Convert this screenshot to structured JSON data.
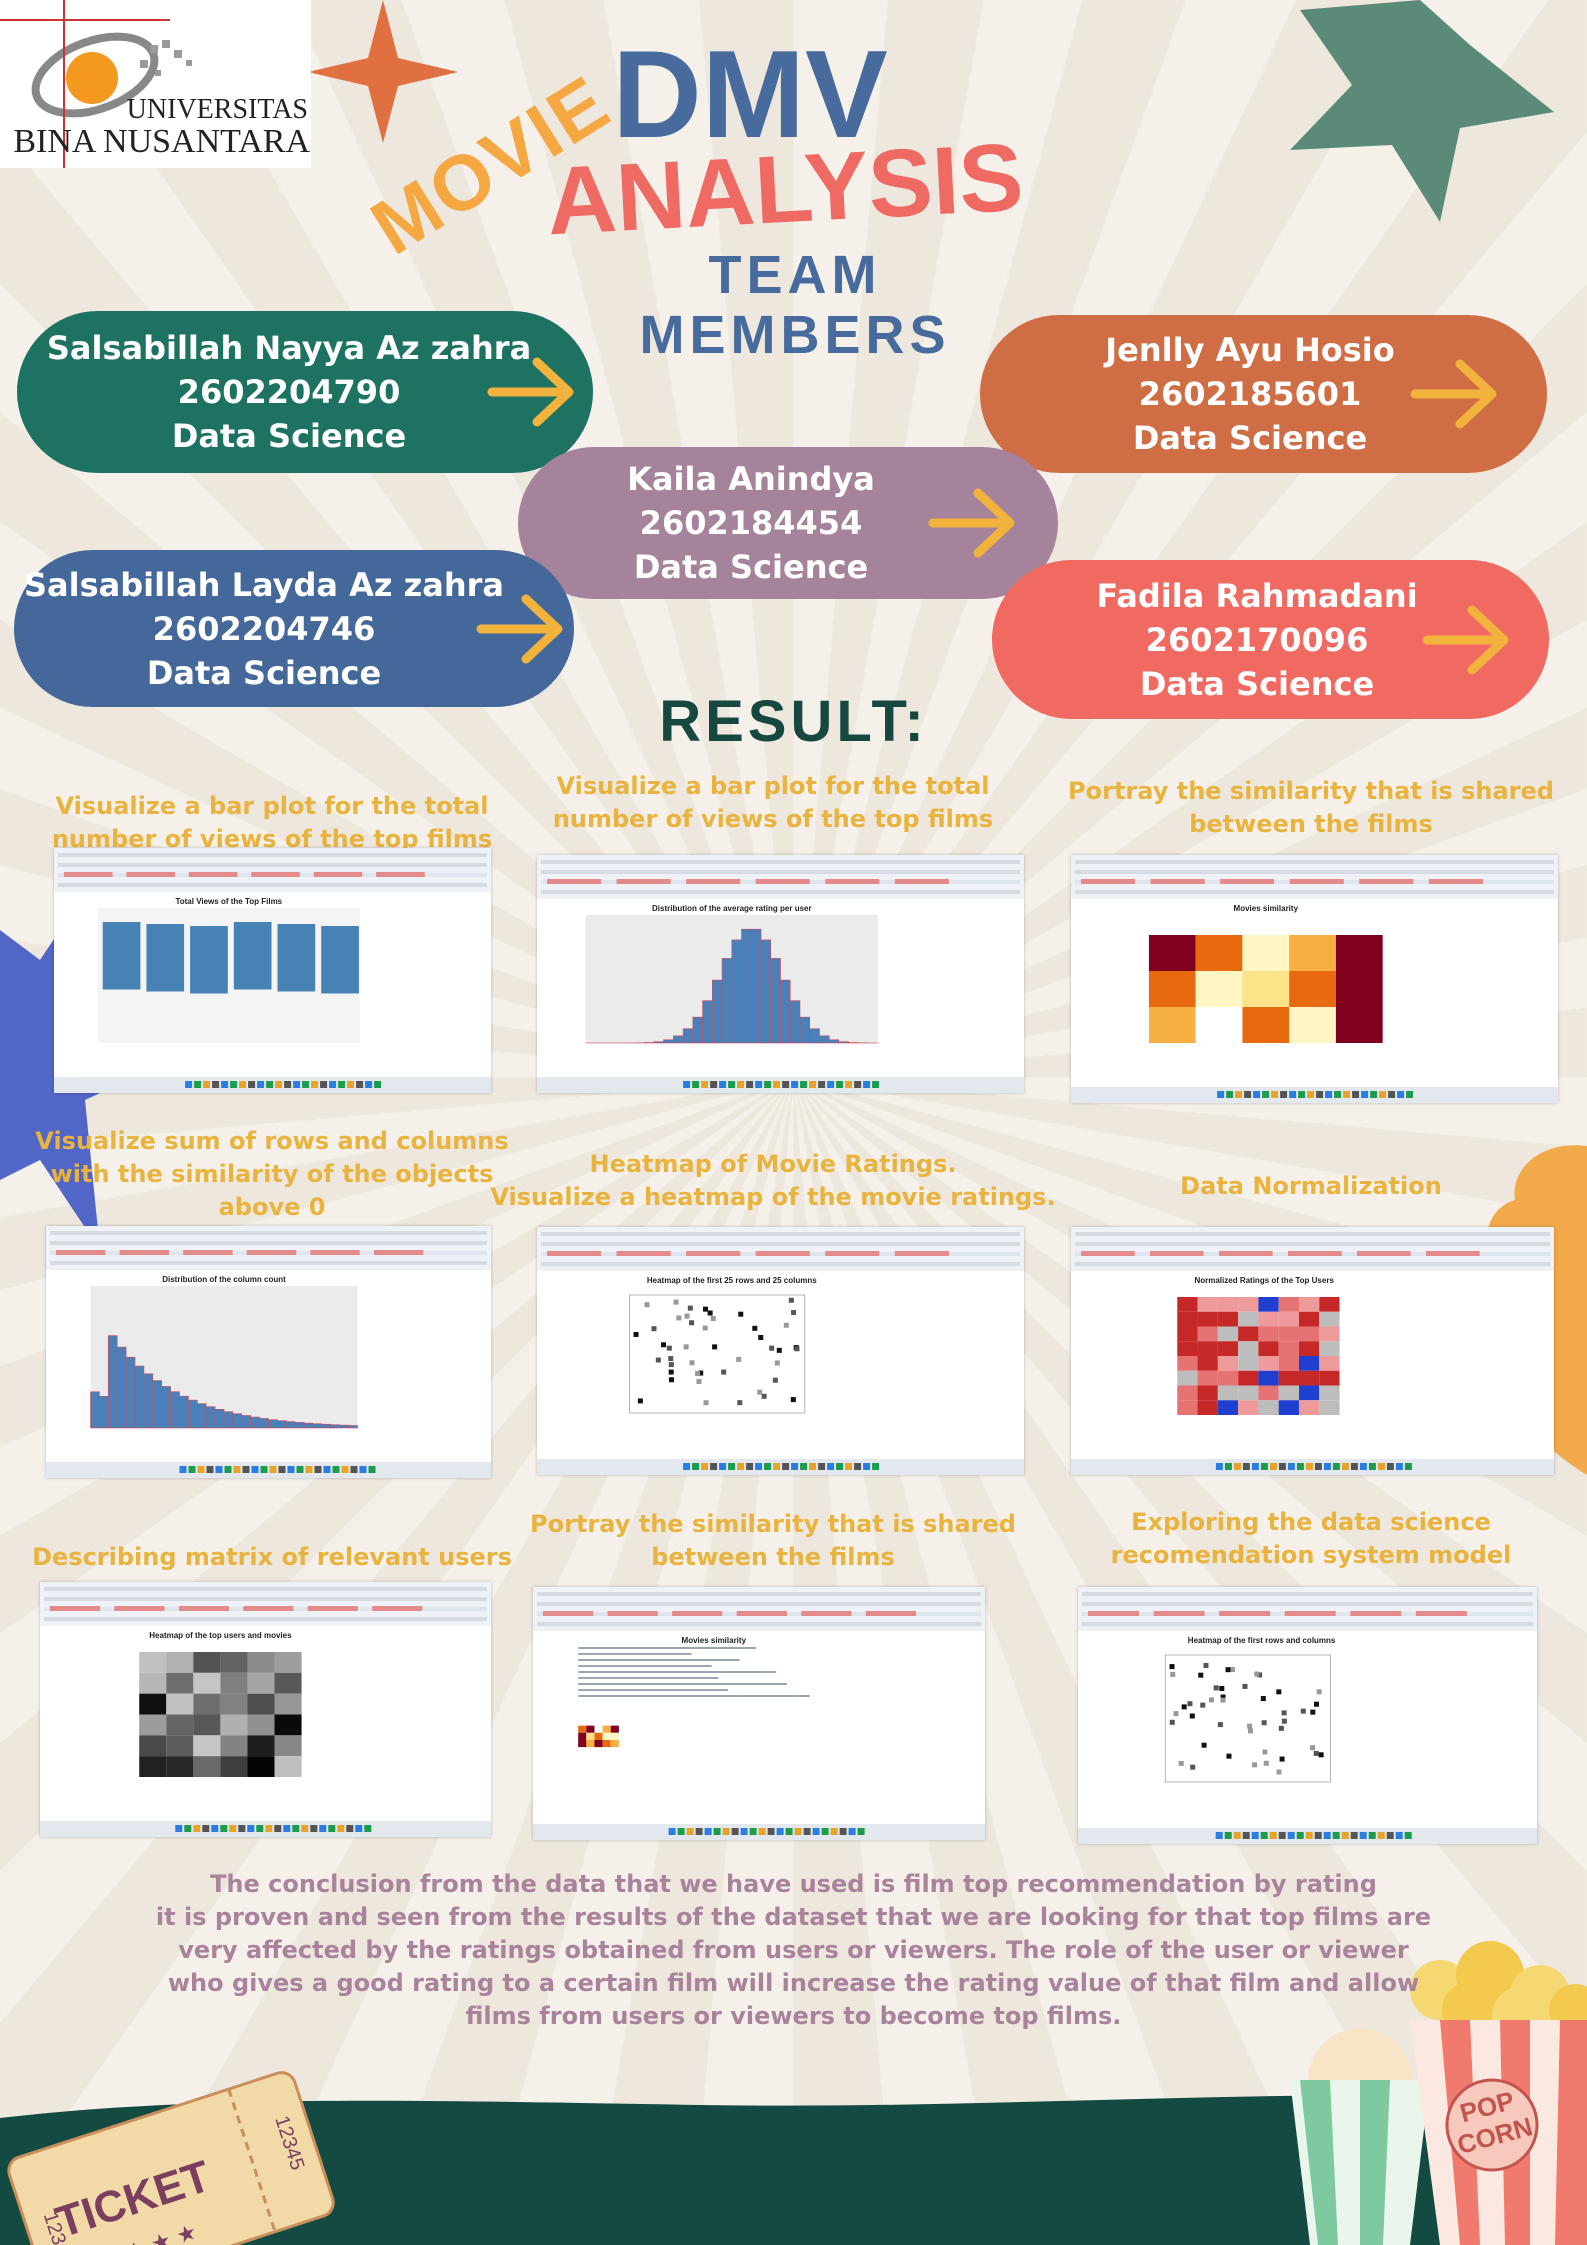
{
  "logo": {
    "line1": "UNIVERSITAS",
    "line2": "BINA NUSANTARA"
  },
  "header": {
    "word1": "MOVIE",
    "word2": "DMV",
    "word3": "ANALYSIS",
    "subtitle": "TEAM MEMBERS"
  },
  "members": [
    {
      "name": "Salsabillah Nayya Az zahra",
      "id": "2602204790",
      "major": "Data Science"
    },
    {
      "name": "Jenlly Ayu Hosio",
      "id": "2602185601",
      "major": "Data Science"
    },
    {
      "name": "Kaila Anindya",
      "id": "2602184454",
      "major": "Data Science"
    },
    {
      "name": "Salsabillah Layda Az zahra",
      "id": "2602204746",
      "major": "Data Science"
    },
    {
      "name": "Fadila Rahmadani",
      "id": "2602170096",
      "major": "Data Science"
    }
  ],
  "result_title": "RESULT:",
  "panels": [
    {
      "caption": [
        "Visualize a bar plot for the total",
        "number of views of the top films"
      ],
      "chart_title": "Total Views of the Top Films"
    },
    {
      "caption": [
        "Visualize a bar plot for the total",
        "number of views of the top films"
      ],
      "chart_title": "Distribution of the average rating per user"
    },
    {
      "caption": [
        "Portray the similarity that is shared",
        "between the films"
      ],
      "chart_title": "Movies similarity"
    },
    {
      "caption": [
        "Visualize sum of rows and columns",
        "with the similarity of the objects",
        "above 0"
      ],
      "chart_title": "Distribution of the column count"
    },
    {
      "caption": [
        "Heatmap of Movie Ratings.",
        "Visualize a heatmap of the movie ratings."
      ],
      "chart_title": "Heatmap of the first 25 rows and 25 columns"
    },
    {
      "caption": [
        "Data Normalization"
      ],
      "chart_title": "Normalized Ratings of the Top Users"
    },
    {
      "caption": [
        "Describing matrix of relevant users"
      ],
      "chart_title": "Heatmap of the top users and movies"
    },
    {
      "caption": [
        "Portray the similarity that is shared",
        "between the films"
      ],
      "chart_title": "Movies similarity"
    },
    {
      "caption": [
        "Exploring the data science",
        "recomendation system model"
      ],
      "chart_title": "Heatmap of the first rows and columns"
    }
  ],
  "conclusion": [
    "The conclusion from the data that we have used is film top recommendation by rating",
    "it is proven and seen from the results of the dataset that we are looking for that top films are",
    "very affected by the ratings obtained from users or viewers. The role of the user or viewer",
    "who gives a good rating to a certain film will increase the rating value of that film and allow",
    "films from users or viewers to become top films."
  ],
  "footer": {
    "ticket": "TICKET",
    "ticket_number": "12345",
    "popcorn": [
      "POP",
      "CORN"
    ]
  }
}
